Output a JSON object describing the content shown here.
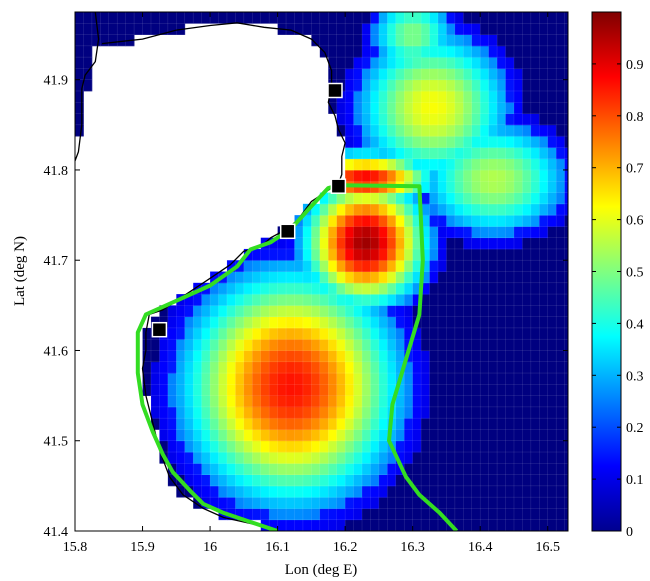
{
  "chart_data": {
    "type": "heatmap",
    "title": "",
    "xlabel": "Lon (deg E)",
    "ylabel": "Lat (deg N)",
    "xlim": [
      15.8,
      16.53
    ],
    "ylim": [
      41.4,
      41.975
    ],
    "xticks": [
      15.8,
      15.9,
      16.0,
      16.1,
      16.2,
      16.3,
      16.4,
      16.5
    ],
    "xtick_labels": [
      "15.8",
      "15.9",
      "16",
      "16.1",
      "16.2",
      "16.3",
      "16.4",
      "16.5"
    ],
    "yticks": [
      41.4,
      41.5,
      41.6,
      41.7,
      41.8,
      41.9
    ],
    "ytick_labels": [
      "41.4",
      "41.5",
      "41.6",
      "41.7",
      "41.8",
      "41.9"
    ],
    "colorbar": {
      "range": [
        0,
        1
      ],
      "colormap": "jet",
      "ticks": [
        0,
        0.1,
        0.2,
        0.3,
        0.4,
        0.5,
        0.6,
        0.7,
        0.8,
        0.9
      ],
      "tick_labels": [
        "0",
        "0.1",
        "0.2",
        "0.3",
        "0.4",
        "0.5",
        "0.6",
        "0.7",
        "0.8",
        "0.9"
      ]
    },
    "grid_resolution_deg": 0.0125,
    "field_description": "Gridded field over sea cells; background sea value 0 (dark blue). Highest values (~0.98) in a core near 16.23E 41.72N; red region (~0.85) along coast from 15.93E to 16.2E and 41.45-41.78N; a yellow-cyan plume (~0.55-0.65) extends north along the coast to 41.97N near 16.3E.",
    "stations": [
      {
        "lon": 15.925,
        "lat": 41.623
      },
      {
        "lon": 16.115,
        "lat": 41.732
      },
      {
        "lon": 16.19,
        "lat": 41.782
      },
      {
        "lon": 16.185,
        "lat": 41.888
      }
    ],
    "coastline": [
      [
        15.83,
        41.975
      ],
      [
        15.835,
        41.945
      ],
      [
        15.83,
        41.92
      ],
      [
        15.815,
        41.905
      ],
      [
        15.81,
        41.89
      ],
      [
        15.81,
        41.85
      ],
      [
        15.805,
        41.82
      ],
      [
        15.8,
        41.81
      ]
    ],
    "coastline_east": [
      [
        15.84,
        41.94
      ],
      [
        15.9,
        41.945
      ],
      [
        15.95,
        41.955
      ],
      [
        16.0,
        41.96
      ],
      [
        16.04,
        41.963
      ],
      [
        16.08,
        41.958
      ],
      [
        16.12,
        41.955
      ],
      [
        16.15,
        41.945
      ],
      [
        16.17,
        41.93
      ],
      [
        16.18,
        41.91
      ],
      [
        16.18,
        41.89
      ],
      [
        16.175,
        41.875
      ],
      [
        16.185,
        41.86
      ],
      [
        16.19,
        41.845
      ],
      [
        16.2,
        41.83
      ],
      [
        16.195,
        41.815
      ],
      [
        16.195,
        41.795
      ],
      [
        16.19,
        41.785
      ],
      [
        16.17,
        41.775
      ],
      [
        16.15,
        41.765
      ],
      [
        16.13,
        41.745
      ],
      [
        16.115,
        41.735
      ],
      [
        16.09,
        41.725
      ],
      [
        16.075,
        41.715
      ],
      [
        16.05,
        41.71
      ],
      [
        16.03,
        41.695
      ],
      [
        16.0,
        41.68
      ],
      [
        15.97,
        41.665
      ],
      [
        15.95,
        41.655
      ],
      [
        15.93,
        41.645
      ],
      [
        15.91,
        41.64
      ],
      [
        15.905,
        41.62
      ],
      [
        15.905,
        41.6
      ],
      [
        15.9,
        41.58
      ],
      [
        15.905,
        41.55
      ],
      [
        15.915,
        41.52
      ],
      [
        15.925,
        41.49
      ],
      [
        15.94,
        41.46
      ],
      [
        15.96,
        41.44
      ],
      [
        15.99,
        41.425
      ],
      [
        16.02,
        41.415
      ],
      [
        16.05,
        41.41
      ],
      [
        16.08,
        41.405
      ],
      [
        16.1,
        41.4
      ]
    ],
    "polygon_outline": [
      [
        16.1,
        41.4
      ],
      [
        16.06,
        41.41
      ],
      [
        16.02,
        41.42
      ],
      [
        15.99,
        41.43
      ],
      [
        15.97,
        41.445
      ],
      [
        15.945,
        41.465
      ],
      [
        15.93,
        41.485
      ],
      [
        15.915,
        41.51
      ],
      [
        15.9,
        41.54
      ],
      [
        15.893,
        41.575
      ],
      [
        15.893,
        41.62
      ],
      [
        15.905,
        41.64
      ],
      [
        15.95,
        41.655
      ],
      [
        16.0,
        41.672
      ],
      [
        16.04,
        41.693
      ],
      [
        16.06,
        41.712
      ],
      [
        16.09,
        41.72
      ],
      [
        16.12,
        41.735
      ],
      [
        16.15,
        41.76
      ],
      [
        16.175,
        41.78
      ],
      [
        16.19,
        41.783
      ],
      [
        16.31,
        41.782
      ],
      [
        16.315,
        41.7
      ],
      [
        16.31,
        41.64
      ],
      [
        16.29,
        41.59
      ],
      [
        16.27,
        41.54
      ],
      [
        16.265,
        41.5
      ],
      [
        16.29,
        41.46
      ],
      [
        16.31,
        41.44
      ],
      [
        16.34,
        41.42
      ],
      [
        16.365,
        41.4
      ]
    ]
  }
}
